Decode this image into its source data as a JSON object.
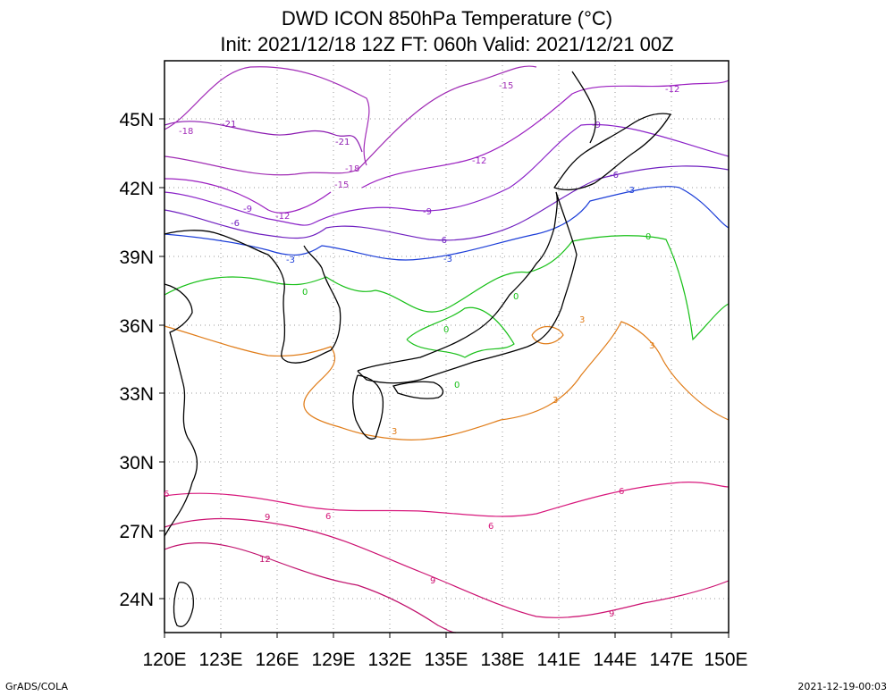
{
  "title": {
    "line1": "DWD ICON 850hPa Temperature (°C)",
    "line2": "Init: 2021/12/18 12Z  FT: 060h  Valid: 2021/12/21 00Z"
  },
  "footer": {
    "left": "GrADS/COLA",
    "right": "2021-12-19-00:03"
  },
  "map": {
    "lon_range": [
      120,
      150
    ],
    "lat_range": [
      22.5,
      47.5
    ],
    "x_ticks": [
      "120E",
      "123E",
      "126E",
      "129E",
      "132E",
      "135E",
      "138E",
      "141E",
      "144E",
      "147E",
      "150E"
    ],
    "y_ticks": [
      "45N",
      "42N",
      "39N",
      "36N",
      "33N",
      "30N",
      "27N",
      "24N"
    ],
    "gridlines": true
  },
  "colors": {
    "minus21": "#8b1ab0",
    "minus18": "#a22cb8",
    "minus15": "#a02cb4",
    "minus12": "#9b1fc0",
    "minus9": "#8a22c8",
    "minus6": "#7020c0",
    "minus3": "#1c3ed8",
    "zero": "#18c018",
    "plus3": "#e07c18",
    "plus6": "#d8187c",
    "plus9": "#cc1070",
    "plus12": "#c0106c",
    "coast": "#000000"
  },
  "contour_labels": [
    "-21",
    "-18",
    "-15",
    "-12",
    "-9",
    "-6",
    "-3",
    "0",
    "3",
    "6",
    "9",
    "12"
  ]
}
